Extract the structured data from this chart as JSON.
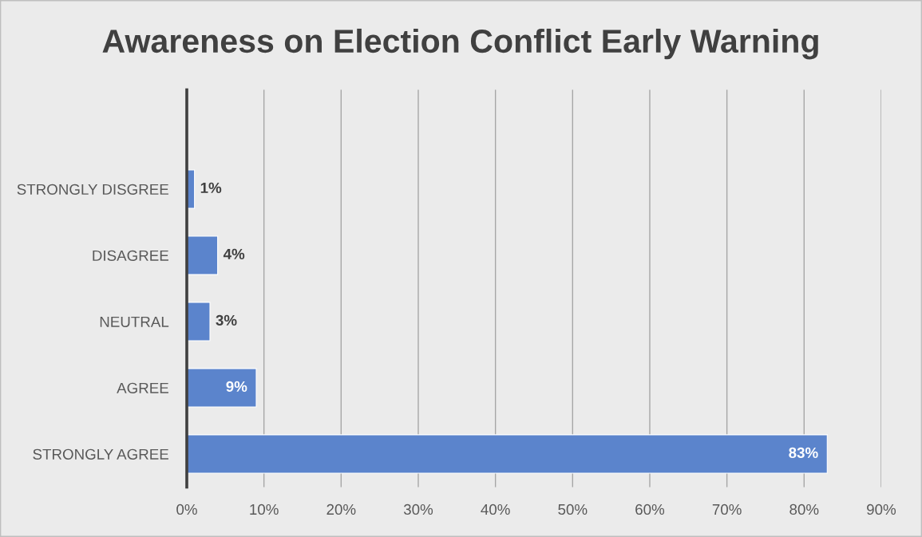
{
  "chart_data": {
    "type": "bar",
    "orientation": "horizontal",
    "title": "Awareness on Election Conflict Early Warning",
    "categories": [
      null,
      "STRONGLY DISGREE",
      "DISAGREE",
      "NEUTRAL",
      "AGREE",
      "STRONGLY AGREE"
    ],
    "values": [
      null,
      1,
      4,
      3,
      9,
      83
    ],
    "value_labels": [
      null,
      "1%",
      "4%",
      "3%",
      "9%",
      "83%"
    ],
    "color": "#5b84cc",
    "xlim": [
      0,
      90
    ],
    "xticks": [
      {
        "value": 0,
        "label": "0%"
      },
      {
        "value": 10,
        "label": "10%"
      },
      {
        "value": 20,
        "label": "20%"
      },
      {
        "value": 30,
        "label": "30%"
      },
      {
        "value": 40,
        "label": "40%"
      },
      {
        "value": 50,
        "label": "50%"
      },
      {
        "value": 60,
        "label": "60%"
      },
      {
        "value": 70,
        "label": "70%"
      },
      {
        "value": 80,
        "label": "80%"
      },
      {
        "value": 90,
        "label": "90%"
      }
    ],
    "grid": "x"
  }
}
